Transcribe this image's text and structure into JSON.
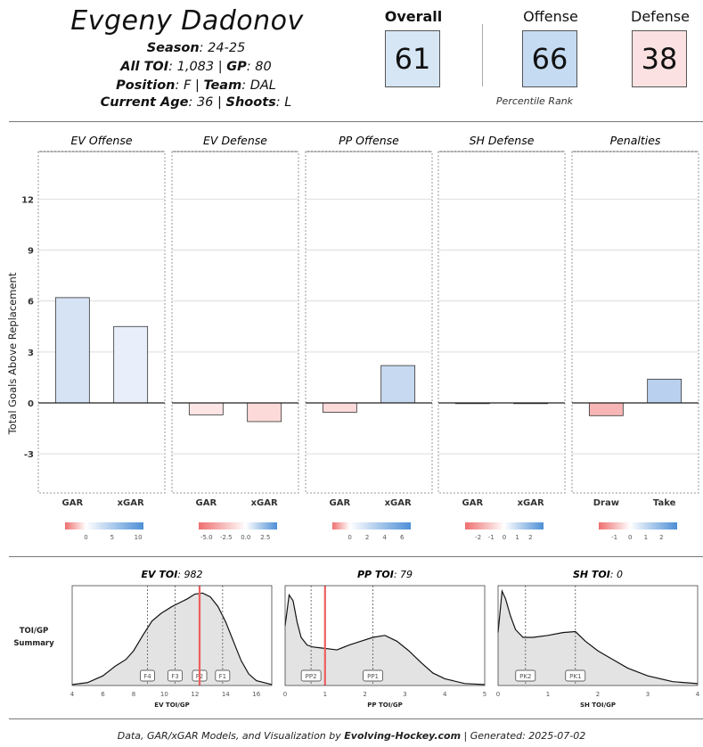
{
  "header": {
    "player_name": "Evgeny Dadonov",
    "season_label": "Season",
    "season": "24-25",
    "toi_label": "All TOI",
    "toi": "1,083",
    "gp_label": "GP",
    "gp": "80",
    "position_label": "Position",
    "position": "F",
    "team_label": "Team",
    "team": "DAL",
    "age_label": "Current Age",
    "age": "36",
    "shoots_label": "Shoots",
    "shoots": "L"
  },
  "scores": {
    "overall_label": "Overall",
    "overall": "61",
    "offense_label": "Offense",
    "offense": "66",
    "defense_label": "Defense",
    "defense": "38",
    "percentile_label": "Percentile Rank",
    "colors": {
      "overall": "#d6e6f5",
      "offense": "#c5dbf1",
      "defense": "#fbe1e1"
    }
  },
  "chart_data": [
    {
      "type": "bar",
      "ylabel": "Total Goals Above Replacement",
      "yticks": [
        -3,
        0,
        3,
        6,
        9,
        12
      ],
      "ylim": [
        -5.3,
        14.8
      ],
      "panels": [
        {
          "title": "EV Offense",
          "categories": [
            "GAR",
            "xGAR"
          ],
          "values": [
            6.2,
            4.5
          ],
          "fills": [
            "#d5e3f4",
            "#e8eefa"
          ],
          "legend_ticks": [
            "0",
            "5",
            "10"
          ],
          "legend_range": [
            -4,
            11
          ]
        },
        {
          "title": "EV Defense",
          "categories": [
            "GAR",
            "xGAR"
          ],
          "values": [
            -0.7,
            -1.1
          ],
          "fills": [
            "#fde5e5",
            "#fddada"
          ],
          "legend_ticks": [
            "-5.0",
            "-2.5",
            "0.0",
            "2.5"
          ],
          "legend_range": [
            -6,
            4
          ]
        },
        {
          "title": "PP Offense",
          "categories": [
            "GAR",
            "xGAR"
          ],
          "values": [
            -0.55,
            2.2
          ],
          "fills": [
            "#fbdada",
            "#c6d9f0"
          ],
          "legend_ticks": [
            "0",
            "2",
            "4",
            "6"
          ],
          "legend_range": [
            -2,
            7
          ]
        },
        {
          "title": "SH Defense",
          "categories": [
            "GAR",
            "xGAR"
          ],
          "values": [
            0.0,
            0.0
          ],
          "fills": [
            "#f0f0f0",
            "#f0f0f0"
          ],
          "legend_ticks": [
            "-2",
            "-1",
            "0",
            "1",
            "2"
          ],
          "legend_range": [
            -3,
            3
          ]
        },
        {
          "title": "Penalties",
          "categories": [
            "Draw",
            "Take"
          ],
          "values": [
            -0.75,
            1.4
          ],
          "fills": [
            "#f7b5b5",
            "#b9d1ee"
          ],
          "legend_ticks": [
            "-1",
            "0",
            "1",
            "2"
          ],
          "legend_range": [
            -2,
            3
          ]
        }
      ]
    },
    {
      "type": "area",
      "summary_label": "TOI/GP Summary",
      "panels": [
        {
          "title_label": "EV TOI",
          "title_value": "982",
          "xlabel": "EV TOI/GP",
          "xlim": [
            4,
            17
          ],
          "xticks": [
            4,
            6,
            8,
            10,
            12,
            14,
            16
          ],
          "player_value": 12.3,
          "markers": [
            {
              "label": "F4",
              "x": 8.9
            },
            {
              "label": "F3",
              "x": 10.7
            },
            {
              "label": "F2",
              "x": 12.3
            },
            {
              "label": "F1",
              "x": 13.8
            }
          ],
          "density_x": [
            4,
            5,
            6,
            6.8,
            7.5,
            8,
            8.6,
            9.2,
            9.8,
            10.5,
            11,
            11.5,
            12,
            12.5,
            13,
            13.5,
            14,
            14.5,
            15,
            15.5,
            16,
            17
          ],
          "density_y": [
            0.01,
            0.03,
            0.1,
            0.2,
            0.27,
            0.36,
            0.52,
            0.67,
            0.75,
            0.82,
            0.86,
            0.9,
            0.95,
            0.96,
            0.92,
            0.82,
            0.66,
            0.46,
            0.26,
            0.12,
            0.05,
            0.01
          ]
        },
        {
          "title_label": "PP TOI",
          "title_value": "79",
          "xlabel": "PP TOI/GP",
          "xlim": [
            0,
            5
          ],
          "xticks": [
            0,
            1,
            2,
            3,
            4,
            5
          ],
          "player_value": 1.0,
          "markers": [
            {
              "label": "PP2",
              "x": 0.65
            },
            {
              "label": "PP1",
              "x": 2.2
            }
          ],
          "density_x": [
            0,
            0.1,
            0.2,
            0.3,
            0.4,
            0.55,
            0.7,
            0.9,
            1.1,
            1.3,
            1.6,
            1.9,
            2.2,
            2.5,
            2.8,
            3.1,
            3.4,
            3.7,
            4,
            4.5,
            5
          ],
          "density_y": [
            0.62,
            0.94,
            0.88,
            0.66,
            0.5,
            0.42,
            0.4,
            0.39,
            0.38,
            0.37,
            0.42,
            0.46,
            0.5,
            0.52,
            0.46,
            0.36,
            0.24,
            0.13,
            0.07,
            0.02,
            0.01
          ]
        },
        {
          "title_label": "SH TOI",
          "title_value": "0",
          "xlabel": "SH TOI/GP",
          "xlim": [
            0,
            4
          ],
          "xticks": [
            0,
            1,
            2,
            3,
            4
          ],
          "player_value": null,
          "markers": [
            {
              "label": "PK2",
              "x": 0.55
            },
            {
              "label": "PK1",
              "x": 1.55
            }
          ],
          "density_x": [
            0,
            0.08,
            0.15,
            0.25,
            0.35,
            0.5,
            0.7,
            1,
            1.3,
            1.55,
            1.75,
            2,
            2.3,
            2.6,
            3,
            3.5,
            4
          ],
          "density_y": [
            0.55,
            0.98,
            0.9,
            0.72,
            0.58,
            0.5,
            0.5,
            0.52,
            0.55,
            0.56,
            0.46,
            0.36,
            0.27,
            0.18,
            0.1,
            0.04,
            0.02
          ]
        }
      ]
    }
  ],
  "footer": {
    "prefix": "Data, GAR/xGAR Models, and Visualization by",
    "brand": "Evolving-Hockey.com",
    "suffix": "| Generated: 2025-07-02"
  }
}
